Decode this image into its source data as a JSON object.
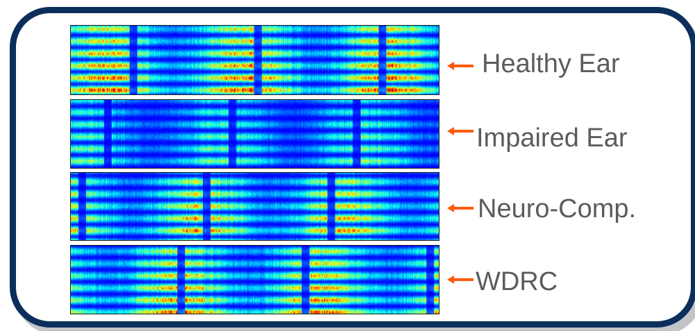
{
  "colors": {
    "frame_border": "#0b2f5a",
    "arrow": "#ff5a0a",
    "label_text": "#5c5c5c"
  },
  "panels": [
    {
      "label": "Healthy Ear",
      "icon": "arrow-left-icon",
      "intensity": 0.95
    },
    {
      "label": "Impaired Ear",
      "icon": "arrow-left-icon",
      "intensity": 0.55
    },
    {
      "label": "Neuro-Comp.",
      "icon": "arrow-left-icon",
      "intensity": 0.85
    },
    {
      "label": "WDRC",
      "icon": "arrow-left-icon",
      "intensity": 0.9
    }
  ]
}
